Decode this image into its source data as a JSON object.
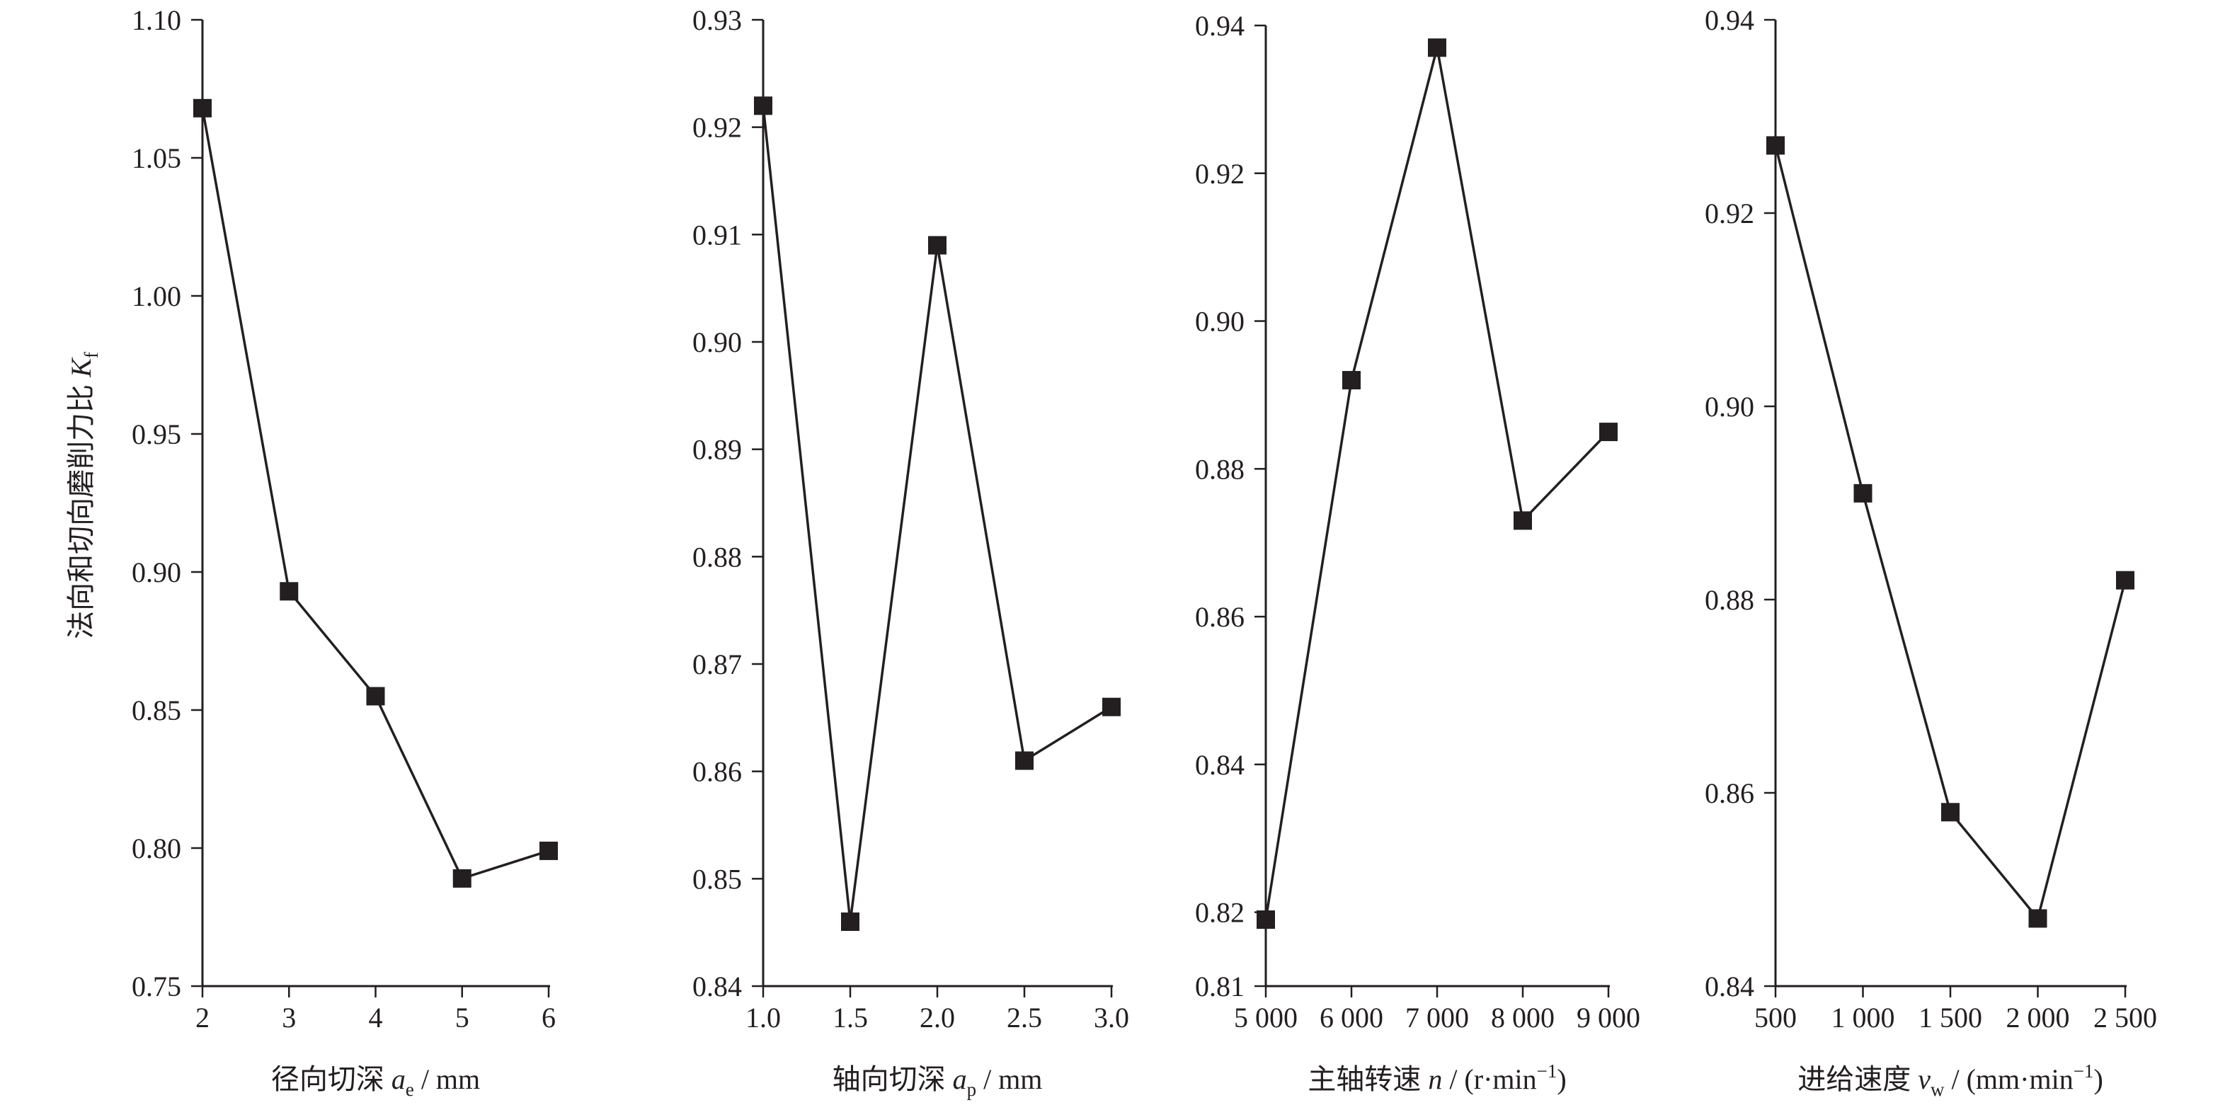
{
  "y_axis_shared_label": {
    "text": "法向和切向磨削力比 ",
    "symbol": "K",
    "subscript": "f"
  },
  "chart_data": [
    {
      "type": "line",
      "x": [
        2,
        3,
        4,
        5,
        6
      ],
      "y": [
        1.068,
        0.893,
        0.855,
        0.789,
        0.799
      ],
      "xlim": [
        2,
        6
      ],
      "ylim": [
        0.75,
        1.1
      ],
      "xticks": [
        "2",
        "3",
        "4",
        "5",
        "6"
      ],
      "yticks": [
        "0.75",
        "0.80",
        "0.85",
        "0.90",
        "0.95",
        "1.00",
        "1.05",
        "1.10"
      ],
      "xlabel": {
        "text": "径向切深 ",
        "symbol": "a",
        "subscript": "e",
        "unit": " / mm"
      },
      "marker": "square",
      "grid": false
    },
    {
      "type": "line",
      "x": [
        1.0,
        1.5,
        2.0,
        2.5,
        3.0
      ],
      "y": [
        0.922,
        0.846,
        0.909,
        0.861,
        0.866
      ],
      "xlim": [
        1.0,
        3.0
      ],
      "ylim": [
        0.84,
        0.93
      ],
      "xticks": [
        "1.0",
        "1.5",
        "2.0",
        "2.5",
        "3.0"
      ],
      "yticks": [
        "0.84",
        "0.85",
        "0.86",
        "0.87",
        "0.88",
        "0.89",
        "0.90",
        "0.91",
        "0.92",
        "0.93"
      ],
      "xlabel": {
        "text": "轴向切深 ",
        "symbol": "a",
        "subscript": "p",
        "unit": " / mm"
      },
      "marker": "square",
      "grid": false
    },
    {
      "type": "line",
      "x": [
        5000,
        6000,
        7000,
        8000,
        9000
      ],
      "y": [
        0.819,
        0.892,
        0.937,
        0.873,
        0.885
      ],
      "xlim": [
        5000,
        9000
      ],
      "ylim": [
        0.81,
        0.94
      ],
      "xticks": [
        "5 000",
        "6 000",
        "7 000",
        "8 000",
        "9 000"
      ],
      "yticks": [
        "0.81",
        "0.82",
        "0.84",
        "0.86",
        "0.88",
        "0.90",
        "0.92",
        "0.94"
      ],
      "xlabel": {
        "text": "主轴转速 ",
        "symbol": "n",
        "subscript": "",
        "unit": " / (r·min",
        "superscript": "−1",
        "unit_end": ")"
      },
      "marker": "square",
      "grid": false
    },
    {
      "type": "line",
      "x": [
        500,
        1000,
        1500,
        2000,
        2500
      ],
      "y": [
        0.927,
        0.891,
        0.858,
        0.847,
        0.882
      ],
      "xlim": [
        500,
        2500
      ],
      "ylim": [
        0.84,
        0.94
      ],
      "xticks": [
        "500",
        "1 000",
        "1 500",
        "2 000",
        "2 500"
      ],
      "yticks": [
        "0.84",
        "0.86",
        "0.88",
        "0.90",
        "0.92",
        "0.94"
      ],
      "xlabel": {
        "text": "进给速度 ",
        "symbol": "v",
        "subscript": "w",
        "unit": " / (mm·min",
        "superscript": "−1",
        "unit_end": ")"
      },
      "marker": "square",
      "grid": false
    }
  ]
}
